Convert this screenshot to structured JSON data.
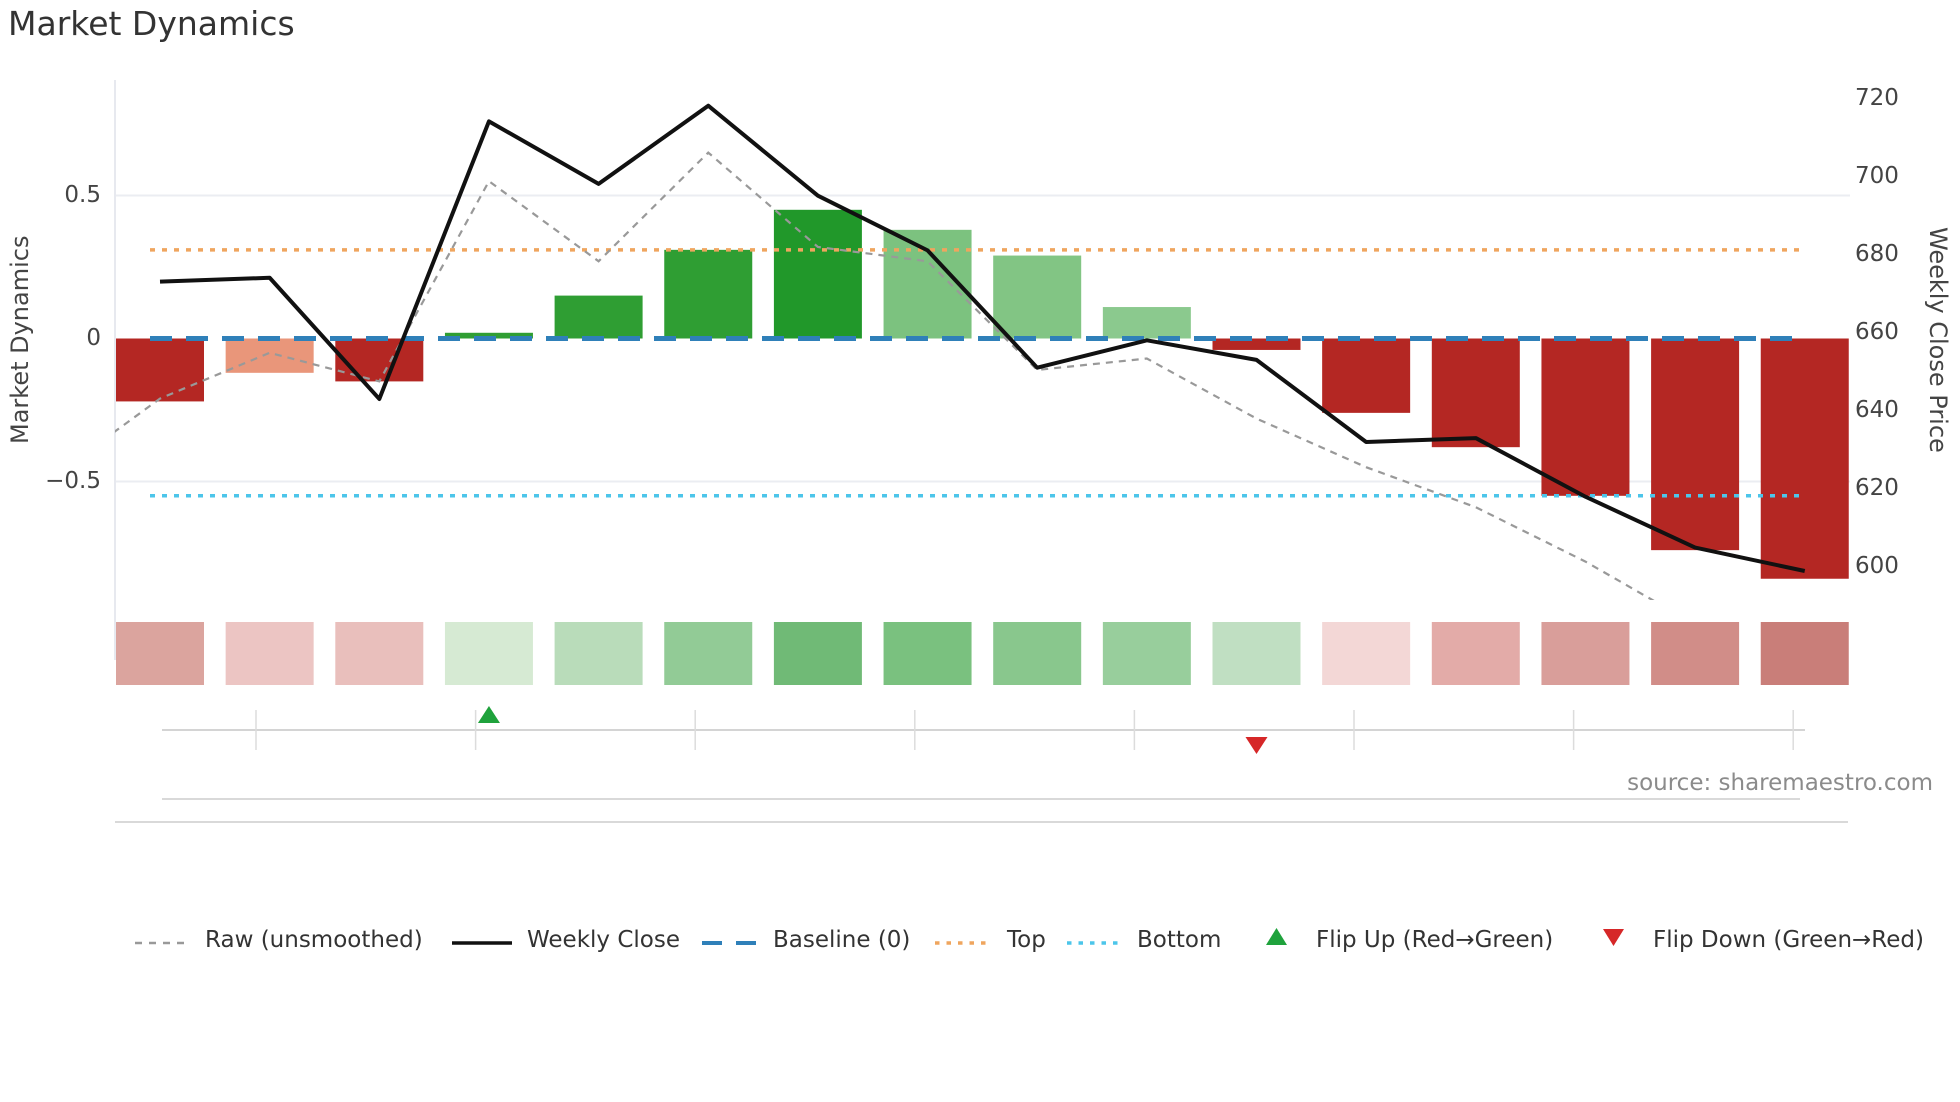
{
  "title": "Market Dynamics",
  "source": "source: sharemaestro.com",
  "axes": {
    "left": {
      "title": "Market Dynamics",
      "ticks": [
        "0.5",
        "0",
        "−0.5"
      ]
    },
    "right": {
      "title": "Weekly Close Price",
      "ticks": [
        "720",
        "700",
        "680",
        "660",
        "640",
        "620",
        "600"
      ]
    }
  },
  "legend": [
    {
      "label": "Raw (unsmoothed)",
      "swatch": "dashed-line",
      "color": "#999999"
    },
    {
      "label": "Weekly Close",
      "swatch": "solid-line",
      "color": "#111111"
    },
    {
      "label": "Baseline (0)",
      "swatch": "long-dash",
      "color": "#2f80b9"
    },
    {
      "label": "Top",
      "swatch": "dotted-line",
      "color": "#efa55e"
    },
    {
      "label": "Bottom",
      "swatch": "dotted-line",
      "color": "#4cc5ea"
    },
    {
      "label": "Flip Up (Red→Green)",
      "swatch": "triangle-up",
      "color": "#1fa23c"
    },
    {
      "label": "Flip Down (Green→Red)",
      "swatch": "triangle-down",
      "color": "#d62728"
    }
  ],
  "chart_data": {
    "type": "combo",
    "description": "16 weekly periods: diverging bar chart of market dynamics (left axis), raw unsmoothed dashed line (left axis), weekly close price solid line (right axis), horizontal reference lines, flip markers and a red/green heatmap strip.",
    "n_periods": 16,
    "left_axis": {
      "label": "Market Dynamics",
      "tick_values": [
        0.5,
        0,
        -0.5
      ],
      "ylim": [
        -0.91,
        0.9
      ]
    },
    "right_axis": {
      "label": "Weekly Close Price",
      "tick_values": [
        720,
        700,
        680,
        660,
        640,
        620,
        600
      ],
      "ylim": [
        592,
        725
      ]
    },
    "series": [
      {
        "name": "Market Dynamics bars",
        "type": "bar",
        "axis": "left",
        "values": [
          -0.22,
          -0.12,
          -0.15,
          0.02,
          0.15,
          0.31,
          0.45,
          0.38,
          0.29,
          0.11,
          -0.04,
          -0.26,
          -0.38,
          -0.55,
          -0.74,
          -0.84
        ],
        "bar_colors": [
          "#b42723",
          "#e9967a",
          "#b42723",
          "#2f9e33",
          "#2f9e33",
          "#2f9e33",
          "#21982a",
          "#7cc27f",
          "#82c584",
          "#8bc98e",
          "#b42723",
          "#b42723",
          "#b42723",
          "#b42723",
          "#b42723",
          "#b42723"
        ]
      },
      {
        "name": "Raw (unsmoothed)",
        "type": "line",
        "axis": "left",
        "color": "#999999",
        "style": "dashed",
        "pre_point": -0.49,
        "values": [
          -0.21,
          -0.05,
          -0.15,
          0.55,
          0.27,
          0.65,
          0.32,
          0.27,
          -0.11,
          -0.07,
          -0.28,
          -0.45,
          -0.59,
          -0.78,
          -1.0,
          null
        ]
      },
      {
        "name": "Weekly Close",
        "type": "line",
        "axis": "right",
        "color": "#111111",
        "style": "solid",
        "values": [
          673,
          674,
          643,
          714,
          698,
          718,
          695,
          681,
          651,
          658,
          653,
          632,
          633,
          618,
          605,
          599
        ]
      }
    ],
    "reference_lines": [
      {
        "name": "Baseline (0)",
        "value": 0,
        "color": "#2f80b9",
        "style": "long-dash"
      },
      {
        "name": "Top",
        "value": 0.31,
        "color": "#efa55e",
        "style": "dotted"
      },
      {
        "name": "Bottom",
        "value": -0.55,
        "color": "#4cc5ea",
        "style": "dotted"
      }
    ],
    "markers": [
      {
        "name": "Flip Up (Red→Green)",
        "period_index": 4,
        "shape": "triangle-up",
        "color": "#1fa23c"
      },
      {
        "name": "Flip Down (Green→Red)",
        "period_index": 11,
        "shape": "triangle-down",
        "color": "#d62728"
      }
    ],
    "heatmap_strip": {
      "cell_colors": [
        "#dba49e",
        "#ecc5c3",
        "#e9bfbc",
        "#d6ead3",
        "#b9dcba",
        "#92cb96",
        "#70ba76",
        "#7ac17f",
        "#89c78d",
        "#98ce9c",
        "#c0dfc2",
        "#f3d7d6",
        "#e3aba8",
        "#d99e9a",
        "#d18d88",
        "#c97e79"
      ]
    },
    "grid": {
      "horizontal_gridlines_at": [
        0.5,
        -0.5
      ],
      "color": "#ebedf2"
    },
    "legend_position": "bottom-center"
  }
}
